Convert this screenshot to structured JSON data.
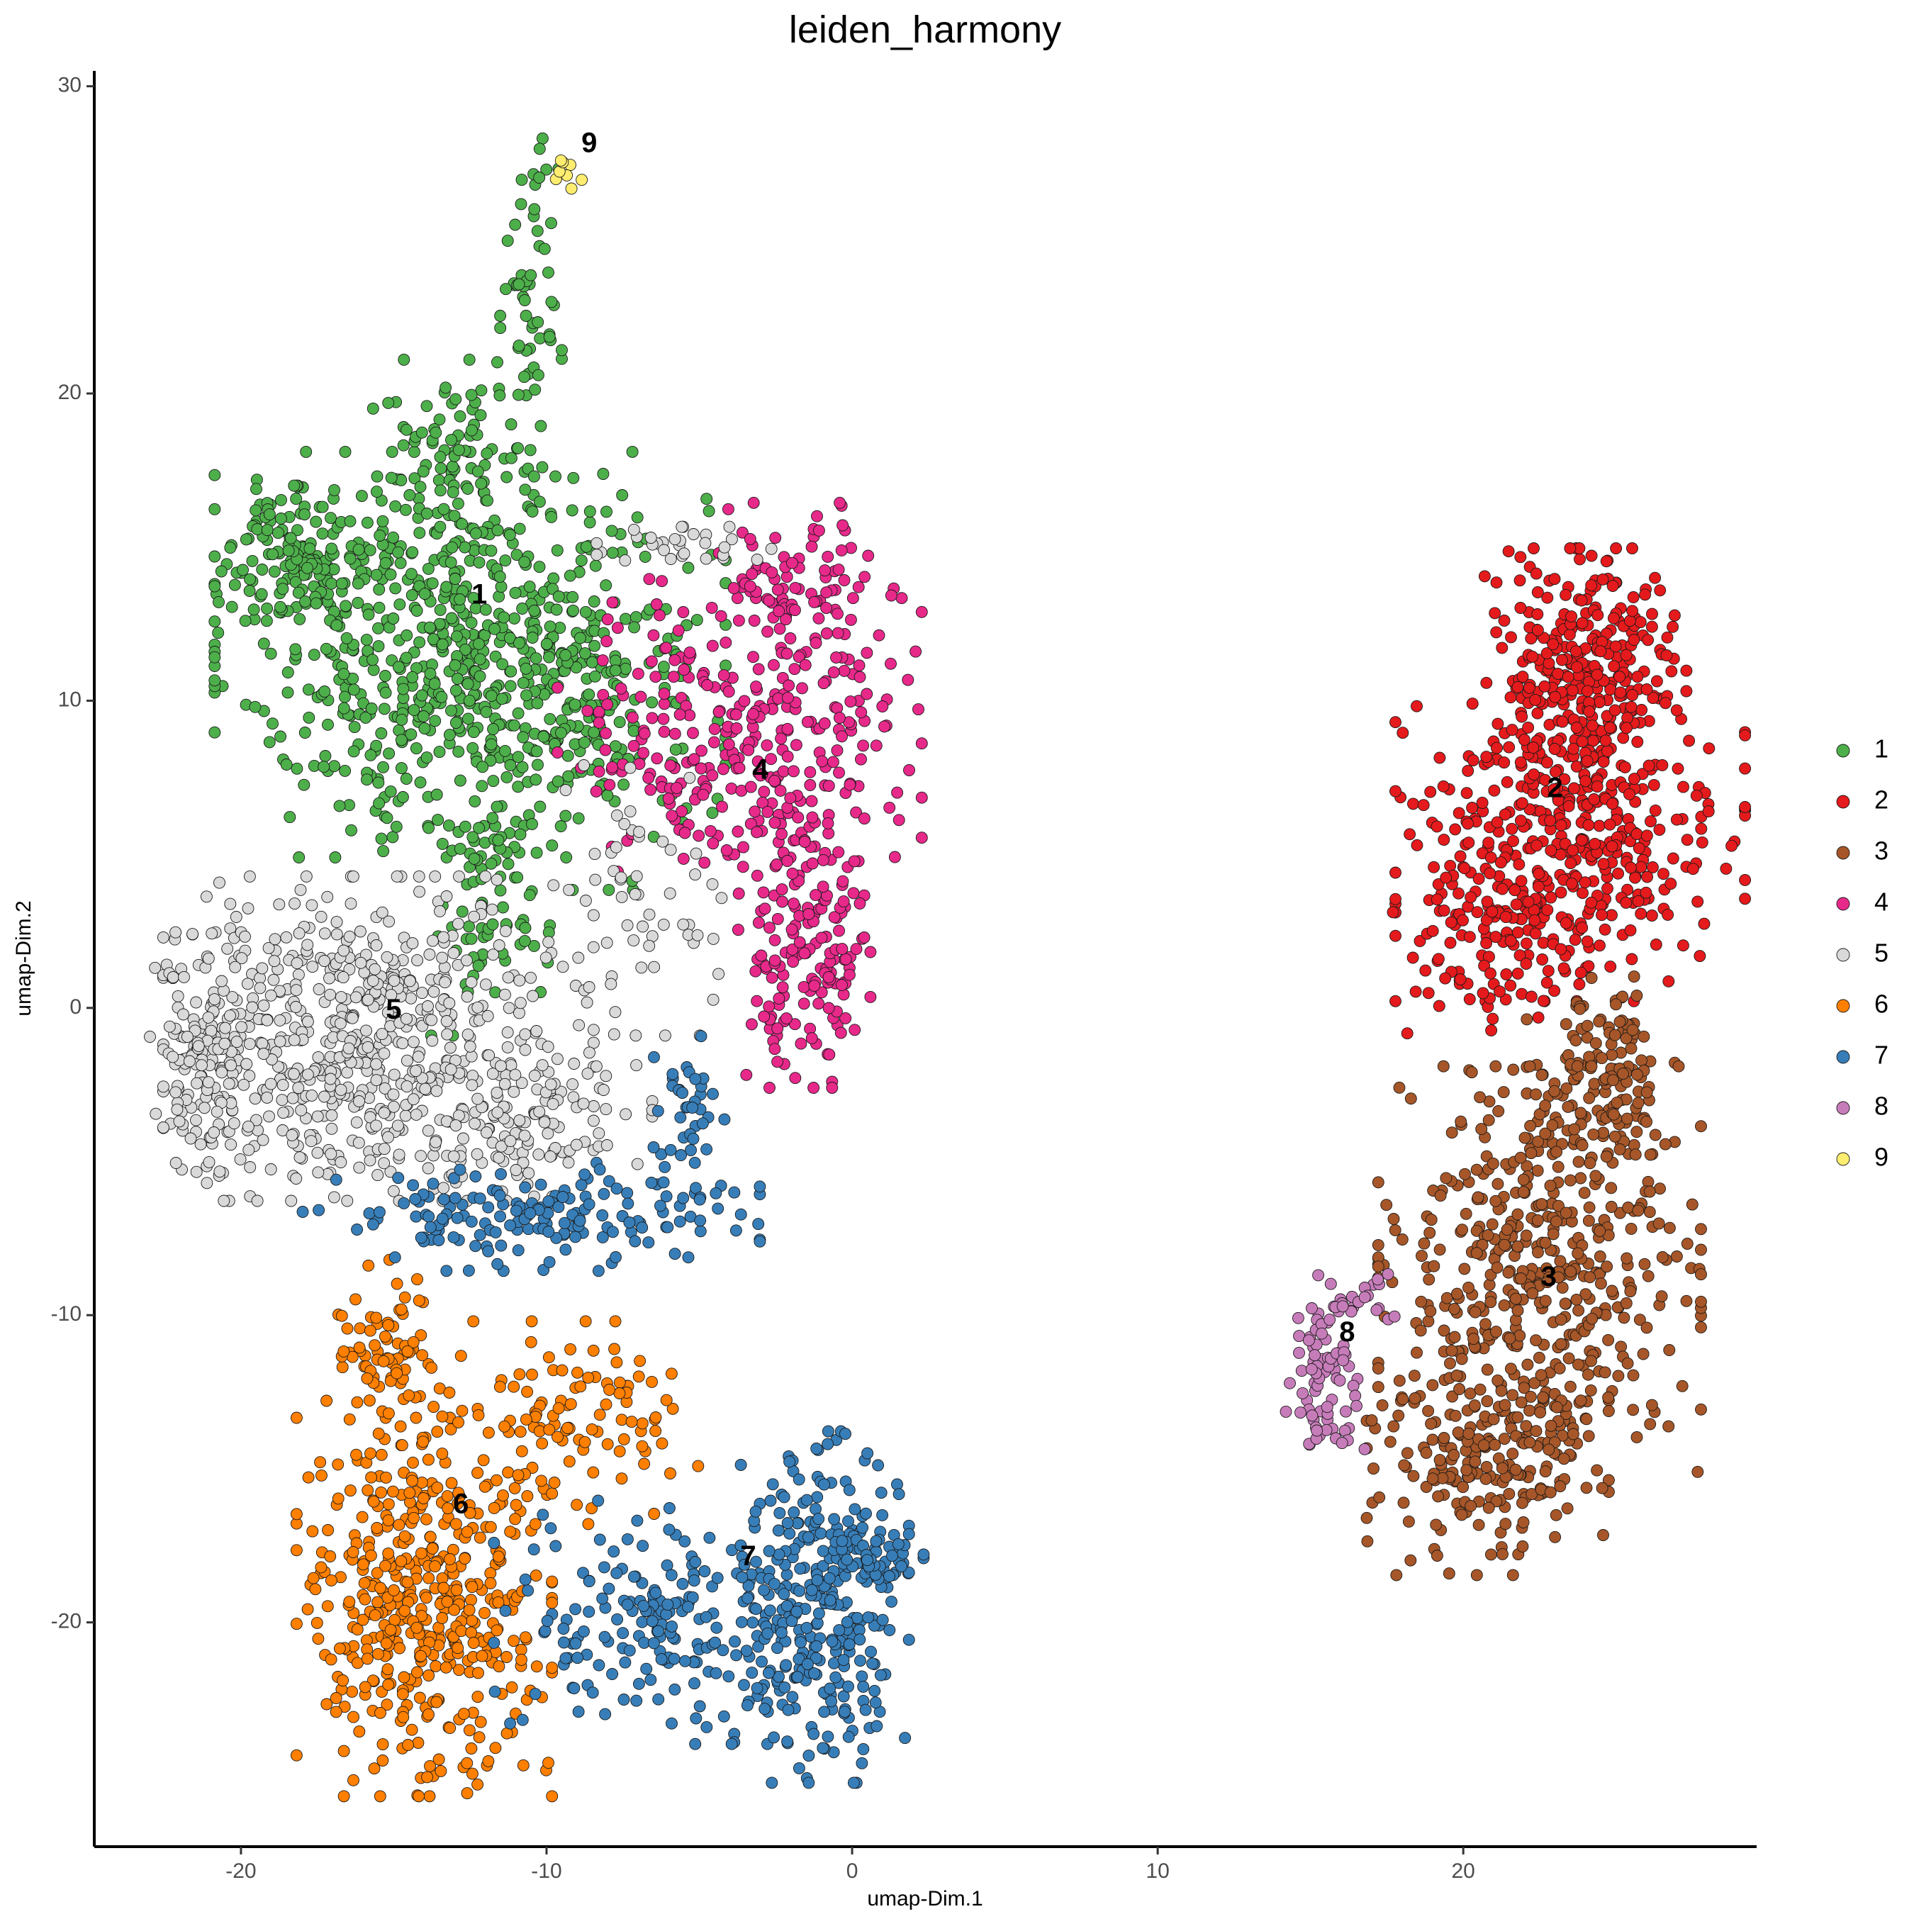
{
  "chart_data": {
    "type": "scatter",
    "title": "leiden_harmony",
    "xlabel": "umap-Dim.1",
    "ylabel": "umap-Dim.2",
    "xlim": [
      -24.8,
      29.6
    ],
    "ylim": [
      -27.3,
      30.5
    ],
    "x_ticks": [
      -20,
      -10,
      0,
      10,
      20
    ],
    "y_ticks": [
      -20,
      -10,
      0,
      10,
      20,
      30
    ],
    "x_tick_labels": [
      "-20",
      "-10",
      "0",
      "10",
      "20"
    ],
    "y_tick_labels": [
      "-20",
      "-10",
      "0",
      "10",
      "20",
      "30"
    ],
    "grid": false,
    "legend_position": "right",
    "clusters": [
      {
        "name": "1",
        "color": "#4DAF4A",
        "label_pos": [
          -12.2,
          13.4
        ],
        "regions": [
          {
            "c": [
              -12.5,
              11.5
            ],
            "s": [
              3.8,
              3.0
            ],
            "n": 700
          },
          {
            "c": [
              -18.0,
              14.8
            ],
            "s": [
              1.2,
              1.0
            ],
            "n": 140
          },
          {
            "c": [
              -13.0,
              17.8
            ],
            "s": [
              1.3,
              1.5
            ],
            "n": 90
          },
          {
            "c": [
              -10.6,
              22.8
            ],
            "s": [
              0.5,
              2.5
            ],
            "n": 60
          },
          {
            "c": [
              -11.8,
              3.5
            ],
            "s": [
              0.9,
              2.0
            ],
            "n": 80
          },
          {
            "c": [
              -9.0,
              10.0
            ],
            "s": [
              1.8,
              2.8
            ],
            "n": 70
          }
        ]
      },
      {
        "name": "2",
        "color": "#E41A1C",
        "label_pos": [
          23.0,
          7.1
        ],
        "regions": [
          {
            "c": [
              24.0,
              11.0
            ],
            "s": [
              1.5,
              1.8
            ],
            "n": 300
          },
          {
            "c": [
              23.5,
              5.5
            ],
            "s": [
              2.6,
              2.4
            ],
            "n": 400
          },
          {
            "c": [
              21.0,
              2.0
            ],
            "s": [
              1.5,
              1.6
            ],
            "n": 100
          }
        ]
      },
      {
        "name": "3",
        "color": "#A65628",
        "label_pos": [
          22.8,
          -8.8
        ],
        "regions": [
          {
            "c": [
              24.5,
              -2.5
            ],
            "s": [
              1.1,
              1.6
            ],
            "n": 150
          },
          {
            "c": [
              22.5,
              -8.5
            ],
            "s": [
              2.4,
              3.0
            ],
            "n": 450
          },
          {
            "c": [
              20.8,
              -14.5
            ],
            "s": [
              1.8,
              1.8
            ],
            "n": 220
          }
        ]
      },
      {
        "name": "4",
        "color": "#E7298A",
        "label_pos": [
          -3.0,
          7.7
        ],
        "regions": [
          {
            "c": [
              -3.0,
              8.5
            ],
            "s": [
              2.4,
              2.2
            ],
            "n": 280
          },
          {
            "c": [
              -1.6,
              1.8
            ],
            "s": [
              1.0,
              2.0
            ],
            "n": 160
          },
          {
            "c": [
              -1.5,
              13.8
            ],
            "s": [
              1.3,
              1.2
            ],
            "n": 90
          },
          {
            "c": [
              -7.0,
              10.0
            ],
            "s": [
              1.2,
              1.8
            ],
            "n": 40
          }
        ]
      },
      {
        "name": "5",
        "color": "#D9D9D9",
        "label_pos": [
          -15.0,
          -0.1
        ],
        "regions": [
          {
            "c": [
              -15.5,
              -1.0
            ],
            "s": [
              3.2,
              2.4
            ],
            "n": 600
          },
          {
            "c": [
              -21.0,
              -1.5
            ],
            "s": [
              0.9,
              1.8
            ],
            "n": 160
          },
          {
            "c": [
              -10.5,
              -3.5
            ],
            "s": [
              1.8,
              1.2
            ],
            "n": 90
          },
          {
            "c": [
              -7.0,
              3.5
            ],
            "s": [
              1.6,
              2.0
            ],
            "n": 60
          },
          {
            "c": [
              -5.5,
              15.0
            ],
            "s": [
              1.3,
              0.3
            ],
            "n": 30
          }
        ]
      },
      {
        "name": "6",
        "color": "#FF7F00",
        "label_pos": [
          -12.8,
          -16.2
        ],
        "regions": [
          {
            "c": [
              -14.0,
              -19.5
            ],
            "s": [
              1.9,
              2.8
            ],
            "n": 450
          },
          {
            "c": [
              -15.0,
              -11.5
            ],
            "s": [
              1.0,
              1.5
            ],
            "n": 90
          },
          {
            "c": [
              -9.0,
              -13.5
            ],
            "s": [
              1.8,
              1.5
            ],
            "n": 110
          }
        ]
      },
      {
        "name": "7",
        "color": "#377EB8",
        "label_pos": [
          -3.4,
          -17.9
        ],
        "regions": [
          {
            "c": [
              -1.0,
              -19.5
            ],
            "s": [
              1.3,
              2.6
            ],
            "n": 300
          },
          {
            "c": [
              -6.0,
              -20.0
            ],
            "s": [
              2.6,
              1.8
            ],
            "n": 200
          },
          {
            "c": [
              -10.5,
              -6.8
            ],
            "s": [
              3.4,
              0.8
            ],
            "n": 170
          },
          {
            "c": [
              -5.5,
              -4.0
            ],
            "s": [
              0.6,
              1.4
            ],
            "n": 40
          },
          {
            "c": [
              0.8,
              -17.8
            ],
            "s": [
              0.7,
              0.4
            ],
            "n": 40
          }
        ]
      },
      {
        "name": "8",
        "color": "#C77CBA",
        "label_pos": [
          16.2,
          -10.6
        ],
        "regions": [
          {
            "c": [
              15.5,
              -11.5
            ],
            "s": [
              0.6,
              0.8
            ],
            "n": 50
          },
          {
            "c": [
              16.5,
              -9.5
            ],
            "s": [
              0.9,
              0.5
            ],
            "n": 25
          },
          {
            "c": [
              15.5,
              -13.7
            ],
            "s": [
              0.6,
              0.4
            ],
            "n": 25
          }
        ]
      },
      {
        "name": "9",
        "color": "#FFED6F",
        "label_pos": [
          -8.6,
          28.1
        ],
        "regions": [
          {
            "c": [
              -9.4,
              27.3
            ],
            "s": [
              0.25,
              0.45
            ],
            "n": 8
          }
        ]
      }
    ]
  }
}
